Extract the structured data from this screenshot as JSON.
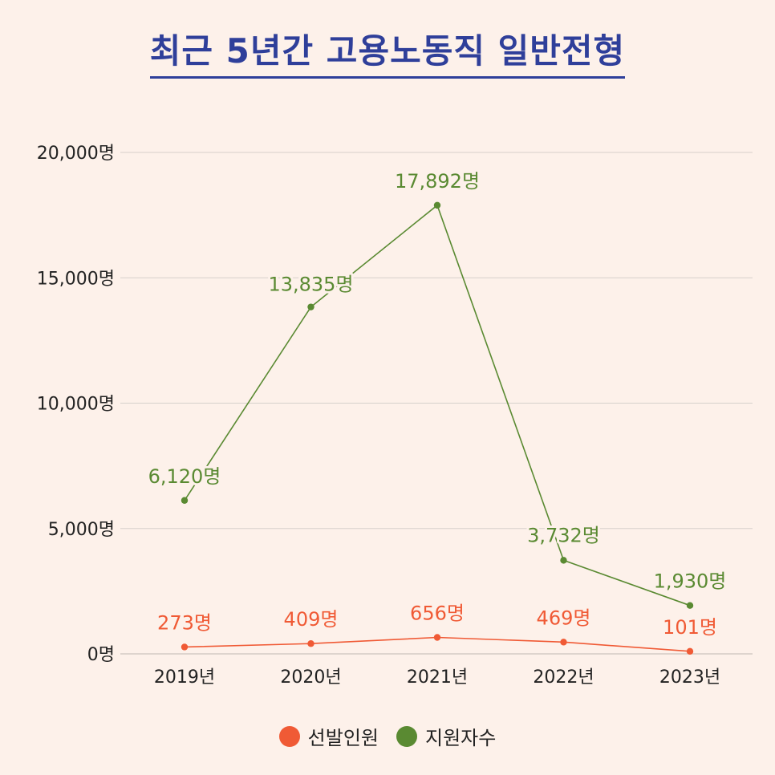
{
  "title": "최근 5년간 고용노동직 일반전형",
  "colors": {
    "background": "#fdf1ea",
    "title": "#2f3f9a",
    "grid": "#d6d0cb",
    "series": [
      "#f05a35",
      "#5a8a32"
    ]
  },
  "chart_data": {
    "type": "line",
    "title": "최근 5년간 고용노동직 일반전형",
    "xlabel": "",
    "ylabel": "",
    "categories": [
      "2019년",
      "2020년",
      "2021년",
      "2022년",
      "2023년"
    ],
    "ylim": [
      0,
      20000
    ],
    "yticks": [
      0,
      5000,
      10000,
      15000,
      20000
    ],
    "ytick_labels": [
      "0명",
      "5,000명",
      "10,000명",
      "15,000명",
      "20,000명"
    ],
    "grid": true,
    "legend_position": "bottom",
    "series": [
      {
        "name": "선발인원",
        "values": [
          273,
          409,
          656,
          469,
          101
        ],
        "labels": [
          "273명",
          "409명",
          "656명",
          "469명",
          "101명"
        ]
      },
      {
        "name": "지원자수",
        "values": [
          6120,
          13835,
          17892,
          3732,
          1930
        ],
        "labels": [
          "6,120명",
          "13,835명",
          "17,892명",
          "3,732명",
          "1,930명"
        ]
      }
    ]
  }
}
